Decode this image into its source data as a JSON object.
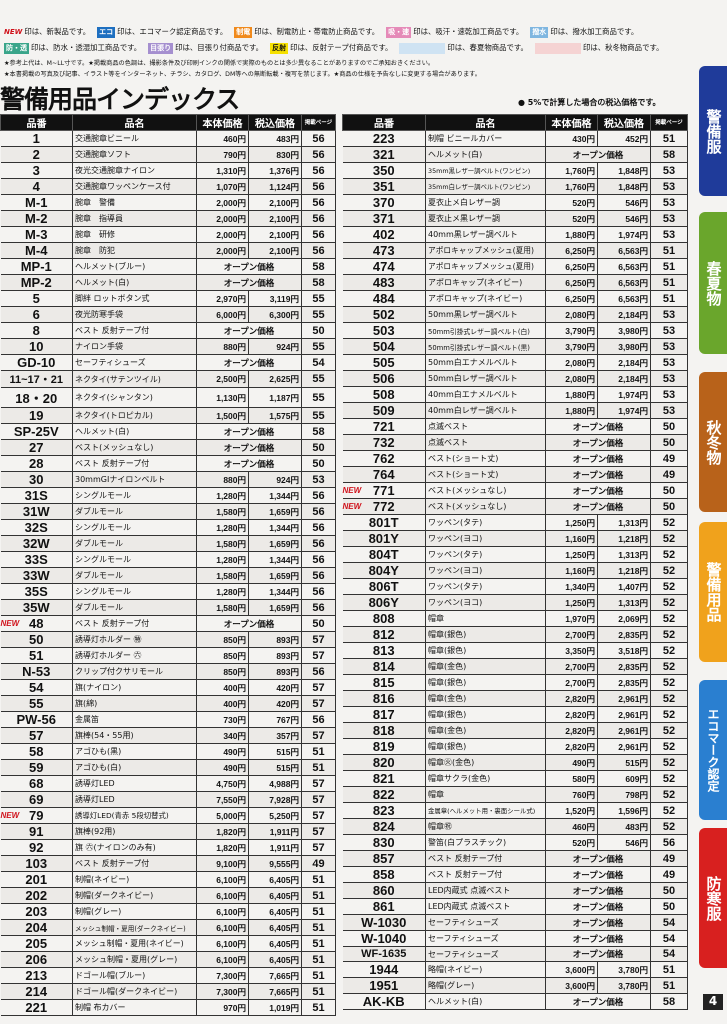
{
  "legend": [
    {
      "badge": "NEW",
      "text": "印は、新製品です。",
      "color": "#d0121b",
      "style": "text"
    },
    {
      "badge": "エコ",
      "text": "印は、エコマーク認定商品です。",
      "color": "#1e6fc0"
    },
    {
      "badge": "制電",
      "text": "印は、制電防止・帯電防止商品です。",
      "color": "#f08a1c"
    },
    {
      "badge": "吸・速",
      "text": "印は、吸汗・速乾加工商品です。",
      "color": "#e58ab8"
    },
    {
      "badge": "撥水",
      "text": "印は、撥水加工商品です。",
      "color": "#7fb6e0"
    },
    {
      "badge": "防・透",
      "text": "印は、防水・透湿加工商品です。",
      "color": "#3aa58a"
    },
    {
      "badge": "目張り",
      "text": "印は、目張り付商品です。",
      "color": "#a58fcf"
    },
    {
      "badge": "反射",
      "text": "印は、反射テープ付商品です。",
      "color": "#f5e000"
    },
    {
      "badge": "",
      "text": "印は、春夏物商品です。",
      "color": "#cfe3f3"
    },
    {
      "badge": "",
      "text": "印は、秋冬物商品です。",
      "color": "#f5d3d3"
    }
  ],
  "notes": [
    "★参考上代は、M~LL寸です。★掲載商品の色調は、撮影条件及び印刷インクの関係で実際のものとは多少異なることがありますのでご承知おきください。",
    "★本書掲載の写真及び記事、イラスト等をインターネット、チラシ、カタログ、DM等への無断転載・複写を禁じます。★商品の仕様を予告なしに変更する場合があります。"
  ],
  "title": "警備用品インデックス",
  "tax_note": "● 5%で計算した場合の税込価格です。",
  "headers": {
    "code": "品番",
    "name": "品名",
    "price": "本体価格",
    "tax": "税込価格",
    "page": "掲載ページ"
  },
  "new_label": "NEW",
  "left_rows": [
    [
      "1",
      "交通腕章ビニール",
      "460円",
      "483円",
      "56"
    ],
    [
      "2",
      "交通腕章ソフト",
      "790円",
      "830円",
      "56"
    ],
    [
      "3",
      "夜光交通腕章ナイロン",
      "1,310円",
      "1,376円",
      "56"
    ],
    [
      "4",
      "交通腕章ワッペンケース付",
      "1,070円",
      "1,124円",
      "56"
    ],
    [
      "M-1",
      "腕章　警備",
      "2,000円",
      "2,100円",
      "56"
    ],
    [
      "M-2",
      "腕章　指導員",
      "2,000円",
      "2,100円",
      "56"
    ],
    [
      "M-3",
      "腕章　研修",
      "2,000円",
      "2,100円",
      "56"
    ],
    [
      "M-4",
      "腕章　防犯",
      "2,000円",
      "2,100円",
      "56"
    ],
    [
      "MP-1",
      "ヘルメット(ブルー)",
      "オープン価格",
      "",
      "58"
    ],
    [
      "MP-2",
      "ヘルメット(白)",
      "オープン価格",
      "",
      "58"
    ],
    [
      "5",
      "脚絆 ロットボタン式",
      "2,970円",
      "3,119円",
      "55"
    ],
    [
      "6",
      "夜光防寒手袋",
      "6,000円",
      "6,300円",
      "55"
    ],
    [
      "8",
      "ベスト 反射テープ付",
      "オープン価格",
      "",
      "50"
    ],
    [
      "10",
      "ナイロン手袋",
      "880円",
      "924円",
      "55"
    ],
    [
      "GD-10",
      "セーフティシューズ",
      "オープン価格",
      "",
      "54"
    ],
    [
      "11~17・21",
      "ネクタイ(サテンツイル)",
      "2,500円",
      "2,625円",
      "55"
    ],
    [
      "18・20",
      "ネクタイ(シャンタン)",
      "1,130円",
      "1,187円",
      "55"
    ],
    [
      "19",
      "ネクタイ(トロピカル)",
      "1,500円",
      "1,575円",
      "55"
    ],
    [
      "SP-25V",
      "ヘルメット(白)",
      "オープン価格",
      "",
      "58"
    ],
    [
      "27",
      "ベスト(メッシュなし)",
      "オープン価格",
      "",
      "50"
    ],
    [
      "28",
      "ベスト 反射テープ付",
      "オープン価格",
      "",
      "50"
    ],
    [
      "30",
      "30mmGIナイロンベルト",
      "880円",
      "924円",
      "53"
    ],
    [
      "31S",
      "シングルモール",
      "1,280円",
      "1,344円",
      "56"
    ],
    [
      "31W",
      "ダブルモール",
      "1,580円",
      "1,659円",
      "56"
    ],
    [
      "32S",
      "シングルモール",
      "1,280円",
      "1,344円",
      "56"
    ],
    [
      "32W",
      "ダブルモール",
      "1,580円",
      "1,659円",
      "56"
    ],
    [
      "33S",
      "シングルモール",
      "1,280円",
      "1,344円",
      "56"
    ],
    [
      "33W",
      "ダブルモール",
      "1,580円",
      "1,659円",
      "56"
    ],
    [
      "35S",
      "シングルモール",
      "1,280円",
      "1,344円",
      "56"
    ],
    [
      "35W",
      "ダブルモール",
      "1,580円",
      "1,659円",
      "56"
    ],
    [
      "48",
      "ベスト 反射テープ付",
      "オープン価格",
      "",
      "50",
      true
    ],
    [
      "50",
      "誘導灯ホルダー ㊕",
      "850円",
      "893円",
      "57"
    ],
    [
      "51",
      "誘導灯ホルダー ㊅",
      "850円",
      "893円",
      "57"
    ],
    [
      "N-53",
      "クリップ付クサリモール",
      "850円",
      "893円",
      "56"
    ],
    [
      "54",
      "旗(ナイロン)",
      "400円",
      "420円",
      "57"
    ],
    [
      "55",
      "旗(綿)",
      "400円",
      "420円",
      "57"
    ],
    [
      "PW-56",
      "金属笛",
      "730円",
      "767円",
      "56"
    ],
    [
      "57",
      "旗棒(54・55用)",
      "340円",
      "357円",
      "57"
    ],
    [
      "58",
      "アゴひも(黒)",
      "490円",
      "515円",
      "51"
    ],
    [
      "59",
      "アゴひも(白)",
      "490円",
      "515円",
      "51"
    ],
    [
      "68",
      "誘導灯LED",
      "4,750円",
      "4,988円",
      "57"
    ],
    [
      "69",
      "誘導灯LED",
      "7,550円",
      "7,928円",
      "57"
    ],
    [
      "79",
      "誘導灯LED(青赤 5段切替式)",
      "5,000円",
      "5,250円",
      "57",
      true
    ],
    [
      "91",
      "旗棒(92用)",
      "1,820円",
      "1,911円",
      "57"
    ],
    [
      "92",
      "旗 ㊅(ナイロンのみ有)",
      "1,820円",
      "1,911円",
      "57"
    ],
    [
      "103",
      "ベスト 反射テープ付",
      "9,100円",
      "9,555円",
      "49"
    ],
    [
      "201",
      "制帽(ネイビー)",
      "6,100円",
      "6,405円",
      "51"
    ],
    [
      "202",
      "制帽(ダークネイビー)",
      "6,100円",
      "6,405円",
      "51"
    ],
    [
      "203",
      "制帽(グレー)",
      "6,100円",
      "6,405円",
      "51"
    ],
    [
      "204",
      "メッシュ制帽・夏用(ダークネイビー)",
      "6,100円",
      "6,405円",
      "51"
    ],
    [
      "205",
      "メッシュ制帽・夏用(ネイビー)",
      "6,100円",
      "6,405円",
      "51"
    ],
    [
      "206",
      "メッシュ制帽・夏用(グレー)",
      "6,100円",
      "6,405円",
      "51"
    ],
    [
      "213",
      "ドゴール帽(ブルー)",
      "7,300円",
      "7,665円",
      "51"
    ],
    [
      "214",
      "ドゴール帽(ダークネイビー)",
      "7,300円",
      "7,665円",
      "51"
    ],
    [
      "221",
      "制帽 布カバー",
      "970円",
      "1,019円",
      "51"
    ]
  ],
  "right_rows": [
    [
      "223",
      "制帽 ビニールカバー",
      "430円",
      "452円",
      "51"
    ],
    [
      "321",
      "ヘルメット(白)",
      "オープン価格",
      "",
      "58"
    ],
    [
      "350",
      "35mm黒レザー調ベルト(ワンピン)",
      "1,760円",
      "1,848円",
      "53"
    ],
    [
      "351",
      "35mm白レザー調ベルト(ワンピン)",
      "1,760円",
      "1,848円",
      "53"
    ],
    [
      "370",
      "夏衣止メ白レザー調",
      "520円",
      "546円",
      "53"
    ],
    [
      "371",
      "夏衣止メ黒レザー調",
      "520円",
      "546円",
      "53"
    ],
    [
      "402",
      "40mm黒レザー調ベルト",
      "1,880円",
      "1,974円",
      "53"
    ],
    [
      "473",
      "アポロキャップメッシュ(夏用)",
      "6,250円",
      "6,563円",
      "51"
    ],
    [
      "474",
      "アポロキャップメッシュ(夏用)",
      "6,250円",
      "6,563円",
      "51"
    ],
    [
      "483",
      "アポロキャップ(ネイビー)",
      "6,250円",
      "6,563円",
      "51"
    ],
    [
      "484",
      "アポロキャップ(ネイビー)",
      "6,250円",
      "6,563円",
      "51"
    ],
    [
      "502",
      "50mm黒レザー調ベルト",
      "2,080円",
      "2,184円",
      "53"
    ],
    [
      "503",
      "50mm引掛式レザー調ベルト(白)",
      "3,790円",
      "3,980円",
      "53"
    ],
    [
      "504",
      "50mm引掛式レザー調ベルト(黒)",
      "3,790円",
      "3,980円",
      "53"
    ],
    [
      "505",
      "50mm白エナメルベルト",
      "2,080円",
      "2,184円",
      "53"
    ],
    [
      "506",
      "50mm白レザー調ベルト",
      "2,080円",
      "2,184円",
      "53"
    ],
    [
      "508",
      "40mm白エナメルベルト",
      "1,880円",
      "1,974円",
      "53"
    ],
    [
      "509",
      "40mm白レザー調ベルト",
      "1,880円",
      "1,974円",
      "53"
    ],
    [
      "721",
      "点滅ベスト",
      "オープン価格",
      "",
      "50"
    ],
    [
      "732",
      "点滅ベスト",
      "オープン価格",
      "",
      "50"
    ],
    [
      "762",
      "ベスト(ショート丈)",
      "オープン価格",
      "",
      "49"
    ],
    [
      "764",
      "ベスト(ショート丈)",
      "オープン価格",
      "",
      "49"
    ],
    [
      "771",
      "ベスト(メッシュなし)",
      "オープン価格",
      "",
      "50",
      true
    ],
    [
      "772",
      "ベスト(メッシュなし)",
      "オープン価格",
      "",
      "50",
      true
    ],
    [
      "801T",
      "ワッペン(タテ)",
      "1,250円",
      "1,313円",
      "52"
    ],
    [
      "801Y",
      "ワッペン(ヨコ)",
      "1,160円",
      "1,218円",
      "52"
    ],
    [
      "804T",
      "ワッペン(タテ)",
      "1,250円",
      "1,313円",
      "52"
    ],
    [
      "804Y",
      "ワッペン(ヨコ)",
      "1,160円",
      "1,218円",
      "52"
    ],
    [
      "806T",
      "ワッペン(タテ)",
      "1,340円",
      "1,407円",
      "52"
    ],
    [
      "806Y",
      "ワッペン(ヨコ)",
      "1,250円",
      "1,313円",
      "52"
    ],
    [
      "808",
      "帽章",
      "1,970円",
      "2,069円",
      "52"
    ],
    [
      "812",
      "帽章(銀色)",
      "2,700円",
      "2,835円",
      "52"
    ],
    [
      "813",
      "帽章(銀色)",
      "3,350円",
      "3,518円",
      "52"
    ],
    [
      "814",
      "帽章(金色)",
      "2,700円",
      "2,835円",
      "52"
    ],
    [
      "815",
      "帽章(銀色)",
      "2,700円",
      "2,835円",
      "52"
    ],
    [
      "816",
      "帽章(金色)",
      "2,820円",
      "2,961円",
      "52"
    ],
    [
      "817",
      "帽章(銀色)",
      "2,820円",
      "2,961円",
      "52"
    ],
    [
      "818",
      "帽章(金色)",
      "2,820円",
      "2,961円",
      "52"
    ],
    [
      "819",
      "帽章(銀色)",
      "2,820円",
      "2,961円",
      "52"
    ],
    [
      "820",
      "帽章㊋(金色)",
      "490円",
      "515円",
      "52"
    ],
    [
      "821",
      "帽章サクラ(金色)",
      "580円",
      "609円",
      "52"
    ],
    [
      "822",
      "帽章",
      "760円",
      "798円",
      "52"
    ],
    [
      "823",
      "金属章(ヘルメット用・裏面シール式)",
      "1,520円",
      "1,596円",
      "52"
    ],
    [
      "824",
      "帽章㊗",
      "460円",
      "483円",
      "52"
    ],
    [
      "830",
      "警笛(白プラスチック)",
      "520円",
      "546円",
      "56"
    ],
    [
      "857",
      "ベスト 反射テープ付",
      "オープン価格",
      "",
      "49"
    ],
    [
      "858",
      "ベスト 反射テープ付",
      "オープン価格",
      "",
      "49"
    ],
    [
      "860",
      "LED内蔵式 点滅ベスト",
      "オープン価格",
      "",
      "50"
    ],
    [
      "861",
      "LED内蔵式 点滅ベスト",
      "オープン価格",
      "",
      "50"
    ],
    [
      "W-1030",
      "セーフティシューズ",
      "オープン価格",
      "",
      "54"
    ],
    [
      "W-1040",
      "セーフティシューズ",
      "オープン価格",
      "",
      "54"
    ],
    [
      "WF-1635",
      "セーフティシューズ",
      "オープン価格",
      "",
      "54"
    ],
    [
      "1944",
      "略帽(ネイビー)",
      "3,600円",
      "3,780円",
      "51"
    ],
    [
      "1951",
      "略帽(グレー)",
      "3,600円",
      "3,780円",
      "51"
    ],
    [
      "AK-KB",
      "ヘルメット(白)",
      "オープン価格",
      "",
      "58"
    ]
  ],
  "side_tabs": [
    {
      "label": "警備服",
      "color": "#1f3b9a"
    },
    {
      "label": "春夏物",
      "color": "#6aa62c"
    },
    {
      "label": "秋冬物",
      "color": "#b8621a"
    },
    {
      "label": "警備用品",
      "color": "#f0a21c"
    },
    {
      "label": "エコマーク認定",
      "color": "#2a7fd0"
    },
    {
      "label": "防寒服",
      "color": "#d8201f"
    }
  ],
  "page_number": "4"
}
